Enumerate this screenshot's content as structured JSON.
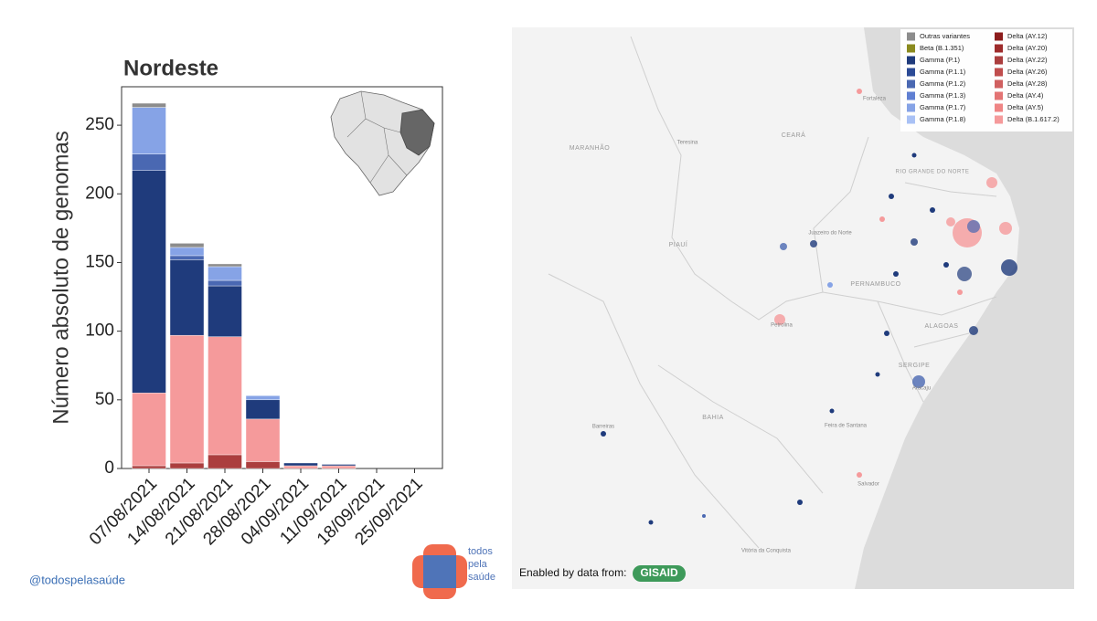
{
  "chart_data": {
    "type": "bar",
    "stacked": true,
    "title": "Nordeste",
    "ylabel": "Número absoluto de genomas",
    "categories": [
      "07/08/2021",
      "14/08/2021",
      "21/08/2021",
      "28/08/2021",
      "04/09/2021",
      "11/09/2021",
      "18/09/2021",
      "25/09/2021"
    ],
    "ylim": [
      0,
      278
    ],
    "yticks": [
      0,
      50,
      100,
      150,
      200,
      250
    ],
    "series": [
      {
        "name": "Outras variantes",
        "color": "#8c8c8c",
        "values": [
          3,
          3,
          2,
          0,
          0,
          0,
          0,
          0
        ]
      },
      {
        "name": "Beta (B.1.351)",
        "color": "#8a8a1e",
        "values": [
          0,
          0,
          0,
          0,
          0,
          0,
          0,
          0
        ]
      },
      {
        "name": "Gamma (P.1)",
        "color": "#1f3b7c",
        "values": [
          162,
          55,
          37,
          14,
          2,
          1,
          0,
          0
        ]
      },
      {
        "name": "Gamma (P.1.1)",
        "color": "#2b4a96",
        "values": [
          0,
          0,
          0,
          0,
          0,
          0,
          0,
          0
        ]
      },
      {
        "name": "Gamma (P.1.2)",
        "color": "#4a68b2",
        "values": [
          12,
          3,
          4,
          0,
          0,
          0,
          0,
          0
        ]
      },
      {
        "name": "Gamma (P.1.3)",
        "color": "#5f7fd2",
        "values": [
          0,
          0,
          0,
          0,
          0,
          0,
          0,
          0
        ]
      },
      {
        "name": "Gamma (P.1.7)",
        "color": "#86a3e6",
        "values": [
          34,
          6,
          10,
          3,
          0,
          0,
          0,
          0
        ]
      },
      {
        "name": "Gamma (P.1.8)",
        "color": "#a9c1f5",
        "values": [
          0,
          0,
          0,
          0,
          0,
          0,
          0,
          0
        ]
      },
      {
        "name": "Delta (AY.12)",
        "color": "#8c1c1c",
        "values": [
          0,
          0,
          0,
          0,
          0,
          0,
          0,
          0
        ]
      },
      {
        "name": "Delta (AY.20)",
        "color": "#9e2b2b",
        "values": [
          0,
          0,
          0,
          0,
          0,
          0,
          0,
          0
        ]
      },
      {
        "name": "Delta (AY.22)",
        "color": "#ab3e3e",
        "values": [
          2,
          4,
          10,
          5,
          0,
          0,
          0,
          0
        ]
      },
      {
        "name": "Delta (AY.26)",
        "color": "#c04d4d",
        "values": [
          0,
          0,
          0,
          0,
          0,
          0,
          0,
          0
        ]
      },
      {
        "name": "Delta (AY.28)",
        "color": "#d06060",
        "values": [
          0,
          0,
          0,
          0,
          0,
          0,
          0,
          0
        ]
      },
      {
        "name": "Delta (AY.4)",
        "color": "#e37474",
        "values": [
          0,
          0,
          0,
          0,
          0,
          0,
          0,
          0
        ]
      },
      {
        "name": "Delta (AY.5)",
        "color": "#ef8585",
        "values": [
          0,
          0,
          0,
          0,
          0,
          0,
          0,
          0
        ]
      },
      {
        "name": "Delta (B.1.617.2)",
        "color": "#f59a9b",
        "values": [
          53,
          93,
          86,
          31,
          2,
          2,
          0,
          0
        ]
      }
    ]
  },
  "map": {
    "states": [
      "MARANHÃO",
      "CEARÁ",
      "PIAUÍ",
      "RIO GRANDE DO NORTE",
      "PERNAMBUCO",
      "ALAGOAS",
      "SERGIPE",
      "BAHIA"
    ],
    "cities": [
      "Fortaleza",
      "Teresina",
      "Juazeiro do Norte",
      "Petrolina",
      "Barreiras",
      "Feira de Santana",
      "Salvador",
      "Vitória da Conquista",
      "Aracaju"
    ],
    "credit": "Enabled by data from:",
    "brand": "GISAID"
  },
  "footer": {
    "handle": "@todospelasaúde",
    "logo": [
      "todos",
      "pela",
      "saúde"
    ]
  }
}
